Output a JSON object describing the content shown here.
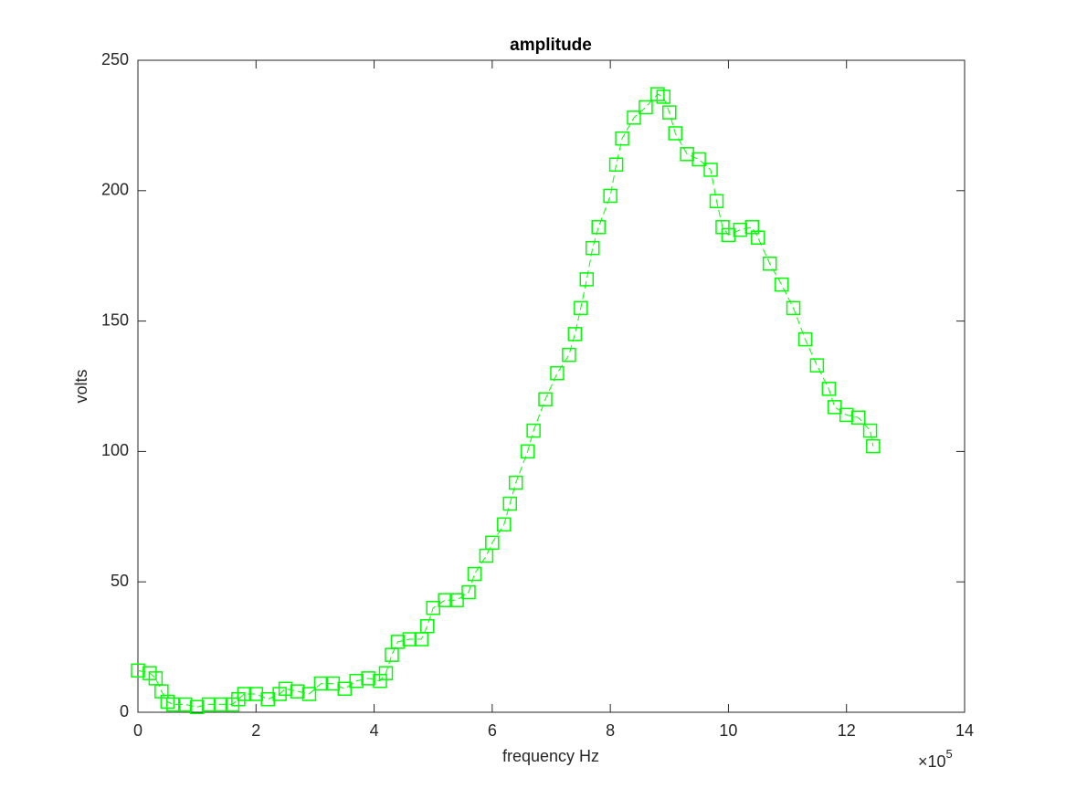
{
  "chart_data": {
    "type": "line",
    "title": "amplitude",
    "x_label": "frequency Hz",
    "y_label": "volts",
    "x_multiplier": {
      "base": "×10",
      "exponent": "5"
    },
    "xlim": [
      0,
      14
    ],
    "xticks": [
      0,
      2,
      4,
      6,
      8,
      10,
      12,
      14
    ],
    "ylim": [
      0,
      250
    ],
    "yticks": [
      0,
      50,
      100,
      150,
      200,
      250
    ],
    "grid": false,
    "marker": "square",
    "series": [
      {
        "color": "#00ff00",
        "x": [
          0,
          0.2,
          0.3,
          0.4,
          0.5,
          0.6,
          0.8,
          1.0,
          1.2,
          1.4,
          1.6,
          1.7,
          1.8,
          2.0,
          2.2,
          2.4,
          2.5,
          2.7,
          2.9,
          3.1,
          3.3,
          3.5,
          3.7,
          3.9,
          4.1,
          4.2,
          4.3,
          4.4,
          4.6,
          4.8,
          4.9,
          5.0,
          5.2,
          5.4,
          5.6,
          5.7,
          5.9,
          6.0,
          6.2,
          6.3,
          6.4,
          6.6,
          6.7,
          6.9,
          7.1,
          7.3,
          7.4,
          7.5,
          7.6,
          7.7,
          7.8,
          8.0,
          8.1,
          8.2,
          8.4,
          8.6,
          8.8,
          8.9,
          9.0,
          9.1,
          9.3,
          9.5,
          9.7,
          9.8,
          9.9,
          10.0,
          10.2,
          10.4,
          10.5,
          10.7,
          10.9,
          11.1,
          11.3,
          11.5,
          11.7,
          11.8,
          12.0,
          12.2,
          12.4,
          12.45
        ],
        "values": [
          16,
          15,
          13,
          8,
          4,
          3,
          3,
          2,
          3,
          3,
          3,
          5,
          7,
          7,
          5,
          7,
          9,
          8,
          7,
          11,
          11,
          9,
          12,
          13,
          12,
          15,
          22,
          27,
          28,
          28,
          33,
          40,
          43,
          43,
          46,
          53,
          60,
          65,
          72,
          80,
          88,
          100,
          108,
          120,
          130,
          137,
          145,
          155,
          166,
          178,
          186,
          198,
          210,
          220,
          228,
          232,
          237,
          236,
          230,
          222,
          214,
          212,
          208,
          196,
          186,
          183,
          185,
          186,
          182,
          172,
          164,
          155,
          143,
          133,
          124,
          117,
          114,
          113,
          108,
          102
        ]
      }
    ]
  }
}
